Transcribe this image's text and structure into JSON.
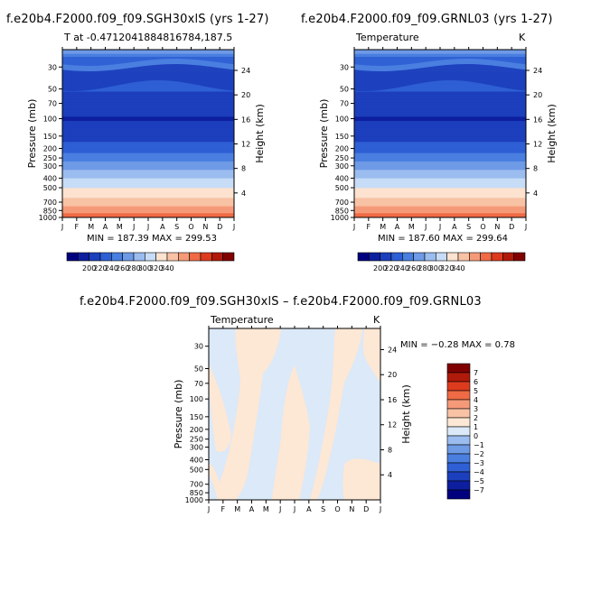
{
  "page": {
    "title_left": "f.e20b4.F2000.f09_f09.SGH30xlS (yrs 1-27)",
    "title_right": "f.e20b4.F2000.f09_f09.GRNL03 (yrs 1-27)",
    "title_diff": "f.e20b4.F2000.f09_f09.SGH30xlS – f.e20b4.F2000.f09_f09.GRNL03"
  },
  "chart_data": [
    {
      "type": "heatmap",
      "panel_label_left": "T at -0.4712041884816784,187.5",
      "panel_label_right": "",
      "xlabel": "",
      "ylabel": "Pressure (mb)",
      "y2label": "Height (km)",
      "x_ticks": [
        "J",
        "F",
        "M",
        "A",
        "M",
        "J",
        "J",
        "A",
        "S",
        "O",
        "N",
        "D",
        "J"
      ],
      "y_ticks": [
        30,
        50,
        70,
        100,
        150,
        200,
        250,
        300,
        400,
        500,
        700,
        850,
        1000
      ],
      "y2_ticks": [
        24,
        20,
        16,
        12,
        8,
        4
      ],
      "ylim": [
        1000,
        20
      ],
      "min": 187.39,
      "max": 299.53,
      "minmax_text": "MIN = 187.39  MAX = 299.53",
      "colorbar_labels": [
        200,
        220,
        240,
        260,
        280,
        300,
        320,
        340
      ]
    },
    {
      "type": "heatmap",
      "panel_label_left": "Temperature",
      "panel_label_right": "K",
      "xlabel": "",
      "ylabel": "Pressure (mb)",
      "y2label": "Height (km)",
      "x_ticks": [
        "J",
        "F",
        "M",
        "A",
        "M",
        "J",
        "J",
        "A",
        "S",
        "O",
        "N",
        "D",
        "J"
      ],
      "y_ticks": [
        30,
        50,
        70,
        100,
        150,
        200,
        250,
        300,
        400,
        500,
        700,
        850,
        1000
      ],
      "y2_ticks": [
        24,
        20,
        16,
        12,
        8,
        4
      ],
      "ylim": [
        1000,
        20
      ],
      "min": 187.6,
      "max": 299.64,
      "minmax_text": "MIN = 187.60  MAX = 299.64",
      "colorbar_labels": [
        200,
        220,
        240,
        260,
        280,
        300,
        320,
        340
      ]
    },
    {
      "type": "heatmap",
      "panel_label_left": "Temperature",
      "panel_label_right": "K",
      "xlabel": "",
      "ylabel": "Pressure (mb)",
      "y2label": "Height (km)",
      "x_ticks": [
        "J",
        "F",
        "M",
        "A",
        "M",
        "J",
        "J",
        "A",
        "S",
        "O",
        "N",
        "D",
        "J"
      ],
      "y_ticks": [
        30,
        50,
        70,
        100,
        150,
        200,
        250,
        300,
        400,
        500,
        700,
        850,
        1000
      ],
      "y2_ticks": [
        24,
        20,
        16,
        12,
        8,
        4
      ],
      "ylim": [
        1000,
        20
      ],
      "min": -0.28,
      "max": 0.78,
      "minmax_text": "MIN =  −0.28  MAX =    0.78",
      "colorbar_labels": [
        7,
        6,
        5,
        4,
        3,
        2,
        1,
        0,
        -1,
        -2,
        -3,
        -4,
        -5,
        -7
      ]
    }
  ],
  "colors": {
    "temp_scale": [
      "#00007f",
      "#0d1f9e",
      "#1c3fbd",
      "#2e5fd4",
      "#4a7fe0",
      "#6e9ae6",
      "#9bbcef",
      "#c7dcf6",
      "#fce2cf",
      "#f8c2a5",
      "#f59a79",
      "#ef6a45",
      "#dd3b1e",
      "#b01a0a",
      "#800000"
    ],
    "diff_scale": [
      "#00007f",
      "#0d1f9e",
      "#1c3fbd",
      "#2e5fd4",
      "#4a7fe0",
      "#6e9ae6",
      "#9bbcef",
      "#dbe9f8",
      "#fde7d5",
      "#f8c2a5",
      "#f59a79",
      "#ef6a45",
      "#dd3b1e",
      "#b01a0a",
      "#800000"
    ],
    "diff_negative": "#dbe9f8",
    "diff_positive": "#fde7d5"
  }
}
